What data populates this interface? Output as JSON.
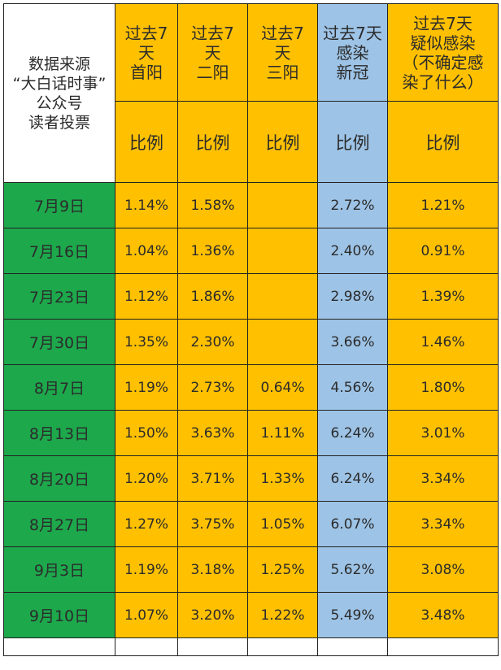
{
  "colors": {
    "orange": "#FFC000",
    "blue": "#9DC3E6",
    "green": "#1DA84C"
  },
  "header": {
    "corner_label": "数据来源\n“大白话时事”\n公众号\n读者投票",
    "columns": [
      {
        "title": "过去7\n天\n首阳",
        "subtitle": "比例",
        "color": "orange"
      },
      {
        "title": "过去7\n天\n二阳",
        "subtitle": "比例",
        "color": "orange"
      },
      {
        "title": "过去7\n天\n三阳",
        "subtitle": "比例",
        "color": "orange"
      },
      {
        "title": "过去7天\n感染\n新冠",
        "subtitle": "比例",
        "color": "blue"
      },
      {
        "title": "过去7天\n疑似感染\n（不确定感\n染了什么）",
        "subtitle": "比例",
        "color": "orange"
      }
    ]
  },
  "rows": [
    {
      "date": "7月9日",
      "values": [
        "1.14%",
        "1.58%",
        "",
        "2.72%",
        "1.21%"
      ]
    },
    {
      "date": "7月16日",
      "values": [
        "1.04%",
        "1.36%",
        "",
        "2.40%",
        "0.91%"
      ]
    },
    {
      "date": "7月23日",
      "values": [
        "1.12%",
        "1.86%",
        "",
        "2.98%",
        "1.39%"
      ]
    },
    {
      "date": "7月30日",
      "values": [
        "1.35%",
        "2.30%",
        "",
        "3.66%",
        "1.46%"
      ]
    },
    {
      "date": "8月7日",
      "values": [
        "1.19%",
        "2.73%",
        "0.64%",
        "4.56%",
        "1.80%"
      ]
    },
    {
      "date": "8月13日",
      "values": [
        "1.50%",
        "3.63%",
        "1.11%",
        "6.24%",
        "3.01%"
      ]
    },
    {
      "date": "8月20日",
      "values": [
        "1.20%",
        "3.71%",
        "1.33%",
        "6.24%",
        "3.34%"
      ]
    },
    {
      "date": "8月27日",
      "values": [
        "1.27%",
        "3.75%",
        "1.05%",
        "6.07%",
        "3.34%"
      ]
    },
    {
      "date": "9月3日",
      "values": [
        "1.19%",
        "3.18%",
        "1.25%",
        "5.62%",
        "3.08%"
      ]
    },
    {
      "date": "9月10日",
      "values": [
        "1.07%",
        "3.20%",
        "1.22%",
        "5.49%",
        "3.48%"
      ]
    }
  ]
}
